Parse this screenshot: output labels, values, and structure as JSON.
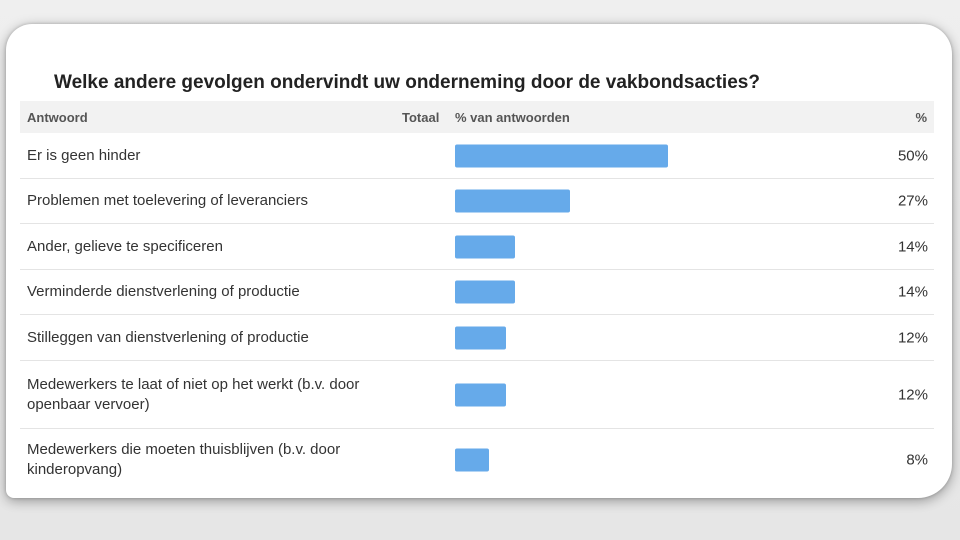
{
  "chart_data": {
    "type": "table",
    "title": "Welke andere gevolgen ondervindt uw onderneming door de vakbondsacties?",
    "columns": [
      "Antwoord",
      "Totaal",
      "% van antwoorden",
      "%"
    ],
    "bar_color": "#66aaea",
    "rows": [
      {
        "label": "Er is geen hinder",
        "value": 50,
        "value_label": "50%"
      },
      {
        "label": "Problemen met toelevering of leveranciers",
        "value": 27,
        "value_label": "27%"
      },
      {
        "label": "Ander, gelieve te specificeren",
        "value": 14,
        "value_label": "14%"
      },
      {
        "label": "Verminderde dienstverlening of productie",
        "value": 14,
        "value_label": "14%"
      },
      {
        "label": "Stilleggen van dienstverlening of productie",
        "value": 12,
        "value_label": "12%"
      },
      {
        "label": "Medewerkers te laat of niet op het werkt (b.v. door openbaar vervoer)",
        "value": 12,
        "value_label": "12%"
      },
      {
        "label": "Medewerkers die moeten thuisblijven (b.v. door kinderopvang)",
        "value": 8,
        "value_label": "8%"
      }
    ]
  }
}
